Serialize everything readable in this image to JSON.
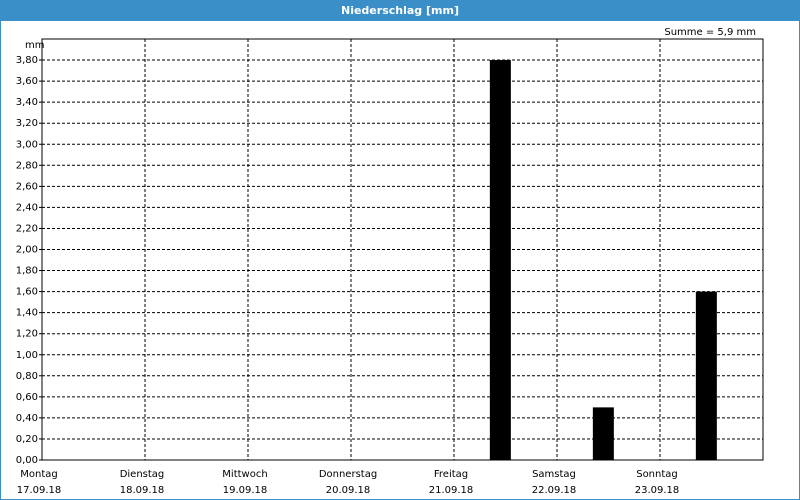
{
  "chart_data": {
    "type": "bar",
    "title": "Niederschlag [mm]",
    "y_label": "mm",
    "annotation": "Summe = 5,9 mm",
    "categories": [
      "Montag",
      "Dienstag",
      "Mittwoch",
      "Donnerstag",
      "Freitag",
      "Samstag",
      "Sonntag"
    ],
    "dates": [
      "17.09.18",
      "18.09.18",
      "19.09.18",
      "20.09.18",
      "21.09.18",
      "22.09.18",
      "23.09.18"
    ],
    "values": [
      0,
      0,
      0,
      0,
      3.8,
      0.5,
      1.6
    ],
    "color": "#000000",
    "ylim": [
      0,
      4
    ],
    "yticks": [
      {
        "value": 0,
        "label": "0,00"
      },
      {
        "value": 0.2,
        "label": "0,20"
      },
      {
        "value": 0.4,
        "label": "0,40"
      },
      {
        "value": 0.6,
        "label": "0,60"
      },
      {
        "value": 0.8,
        "label": "0,80"
      },
      {
        "value": 1,
        "label": "1,00"
      },
      {
        "value": 1.2,
        "label": "1,20"
      },
      {
        "value": 1.4,
        "label": "1,40"
      },
      {
        "value": 1.6,
        "label": "1,60"
      },
      {
        "value": 1.8,
        "label": "1,80"
      },
      {
        "value": 2,
        "label": "2,00"
      },
      {
        "value": 2.2,
        "label": "2,20"
      },
      {
        "value": 2.4,
        "label": "2,40"
      },
      {
        "value": 2.6,
        "label": "2,60"
      },
      {
        "value": 2.8,
        "label": "2,80"
      },
      {
        "value": 3,
        "label": "3,00"
      },
      {
        "value": 3.2,
        "label": "3,20"
      },
      {
        "value": 3.4,
        "label": "3,40"
      },
      {
        "value": 3.6,
        "label": "3,60"
      },
      {
        "value": 3.8,
        "label": "3,80"
      }
    ],
    "grid": true
  }
}
